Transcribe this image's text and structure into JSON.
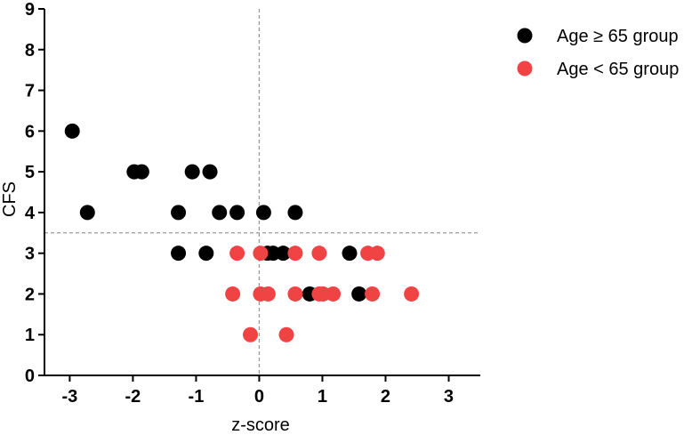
{
  "chart_data": {
    "type": "scatter",
    "xlabel": "z-score",
    "ylabel": "CFS",
    "xlim": [
      -3.4,
      3.5
    ],
    "ylim": [
      0,
      9
    ],
    "x_ticks": [
      -3,
      -2,
      -1,
      0,
      1,
      2,
      3
    ],
    "y_ticks": [
      0,
      1,
      2,
      3,
      4,
      5,
      6,
      7,
      8,
      9
    ],
    "x_tick_labels": [
      "-3",
      "-2",
      "-1",
      "0",
      "1",
      "2",
      "3"
    ],
    "y_tick_labels": [
      "0",
      "1",
      "2",
      "3",
      "4",
      "5",
      "6",
      "7",
      "8",
      "9"
    ],
    "reference_lines": {
      "vertical_x": 0,
      "horizontal_y": 3.5
    },
    "legend_position": "top-right, outside plot",
    "grid": false,
    "series": [
      {
        "name": "Age ≥ 65 group",
        "color": "#000000",
        "points": [
          [
            -2.96,
            6
          ],
          [
            -2.72,
            4
          ],
          [
            -1.98,
            5
          ],
          [
            -1.86,
            5
          ],
          [
            -1.28,
            4
          ],
          [
            -1.28,
            3
          ],
          [
            -1.06,
            5
          ],
          [
            -0.84,
            3
          ],
          [
            -0.78,
            5
          ],
          [
            -0.63,
            4
          ],
          [
            -0.35,
            4
          ],
          [
            0.07,
            4
          ],
          [
            0.57,
            4
          ],
          [
            0.13,
            3
          ],
          [
            0.22,
            3
          ],
          [
            0.38,
            3
          ],
          [
            1.43,
            3
          ],
          [
            0.8,
            2
          ],
          [
            1.58,
            2
          ]
        ]
      },
      {
        "name": "Age < 65 group",
        "color": "#f04444",
        "points": [
          [
            -0.35,
            3
          ],
          [
            0.02,
            3
          ],
          [
            0.57,
            3
          ],
          [
            0.95,
            3
          ],
          [
            1.72,
            3
          ],
          [
            1.87,
            3
          ],
          [
            -0.42,
            2
          ],
          [
            0.02,
            2
          ],
          [
            0.14,
            2
          ],
          [
            0.57,
            2
          ],
          [
            0.95,
            2
          ],
          [
            1.01,
            2
          ],
          [
            1.17,
            2
          ],
          [
            1.79,
            2
          ],
          [
            2.41,
            2
          ],
          [
            -0.14,
            1
          ],
          [
            0.43,
            1
          ]
        ]
      }
    ]
  }
}
